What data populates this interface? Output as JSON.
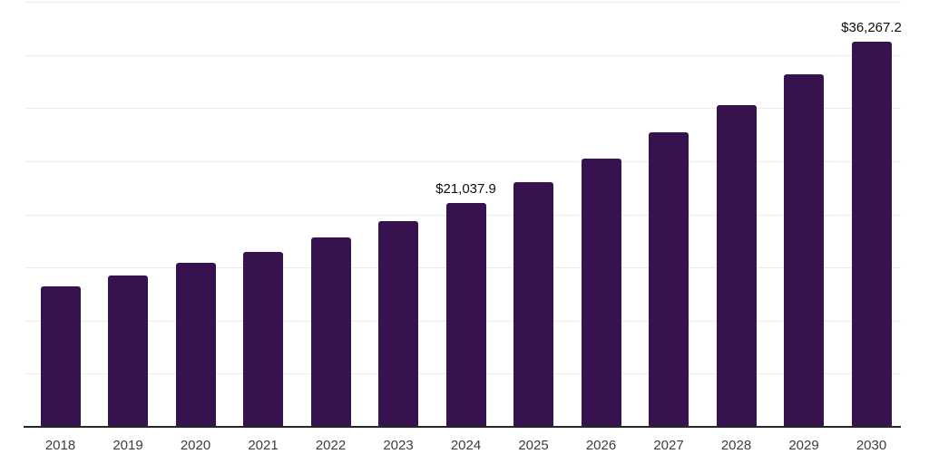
{
  "chart_data": {
    "type": "bar",
    "title": "",
    "xlabel": "",
    "ylabel": "",
    "categories": [
      "2018",
      "2019",
      "2020",
      "2021",
      "2022",
      "2023",
      "2024",
      "2025",
      "2026",
      "2027",
      "2028",
      "2029",
      "2030"
    ],
    "values": [
      13200,
      14250,
      15400,
      16450,
      17850,
      19400,
      21037.9,
      23050,
      25250,
      27750,
      30250,
      33200,
      36267.2
    ],
    "data_labels": [
      "",
      "",
      "",
      "",
      "",
      "",
      "$21,037.9",
      "",
      "",
      "",
      "",
      "",
      "$36,267.2"
    ],
    "ylim": [
      0,
      40000
    ],
    "grid_step": 5000,
    "grid": true,
    "legend": false,
    "y_axis_labels_visible": false,
    "colors": {
      "bar": "#36134e",
      "gridline": "#ededed",
      "axis_line": "#262626",
      "tick_label": "#3d3d3d",
      "data_label": "#0d0d0d",
      "background": "#ffffff"
    }
  }
}
